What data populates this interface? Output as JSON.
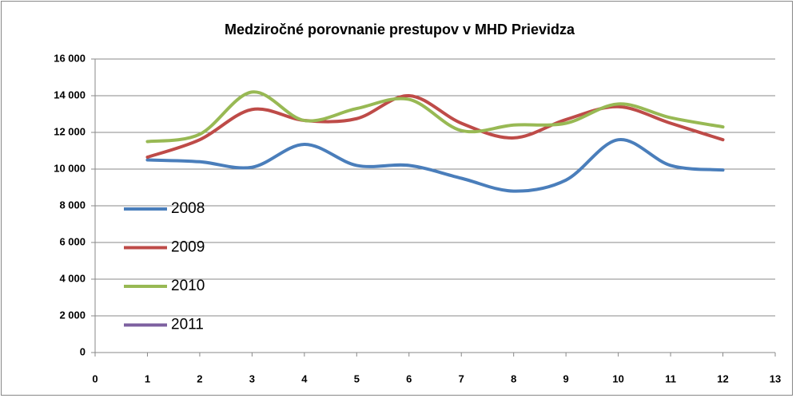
{
  "chart_data": {
    "type": "line",
    "title": "Medziročné porovnanie prestupov v MHD Prievidza",
    "x": [
      1,
      2,
      3,
      4,
      5,
      6,
      7,
      8,
      9,
      10,
      11,
      12
    ],
    "series": [
      {
        "name": "2008",
        "color": "#4a7ebb",
        "values": [
          10500,
          10400,
          10100,
          11350,
          10200,
          10200,
          9500,
          8800,
          9400,
          11600,
          10200,
          9950
        ]
      },
      {
        "name": "2009",
        "color": "#be4b48",
        "values": [
          10650,
          11600,
          13250,
          12650,
          12750,
          14000,
          12500,
          11700,
          12700,
          13400,
          12500,
          11600
        ]
      },
      {
        "name": "2010",
        "color": "#98b954",
        "values": [
          11500,
          11900,
          14200,
          12650,
          13300,
          13800,
          12100,
          12400,
          12500,
          13550,
          12800,
          12300
        ]
      },
      {
        "name": "2011",
        "color": "#7d60a0",
        "values": [
          null,
          null,
          null,
          null,
          null,
          null,
          null,
          null,
          null,
          null,
          null,
          null
        ]
      }
    ],
    "xlim": [
      0,
      13
    ],
    "xticks": [
      0,
      1,
      2,
      3,
      4,
      5,
      6,
      7,
      8,
      9,
      10,
      11,
      12,
      13
    ],
    "ylim": [
      0,
      16000
    ],
    "yticks": [
      0,
      {
        "value": 2000,
        "label": "2 000"
      },
      {
        "value": 4000,
        "label": "4 000"
      },
      {
        "value": 6000,
        "label": "6 000"
      },
      {
        "value": 8000,
        "label": "8 000"
      },
      {
        "value": 10000,
        "label": "10 000"
      },
      {
        "value": 12000,
        "label": "12 000"
      },
      {
        "value": 14000,
        "label": "14 000"
      },
      {
        "value": 16000,
        "label": "16 000"
      }
    ],
    "grid": true,
    "smooth": true,
    "legend": "left"
  }
}
